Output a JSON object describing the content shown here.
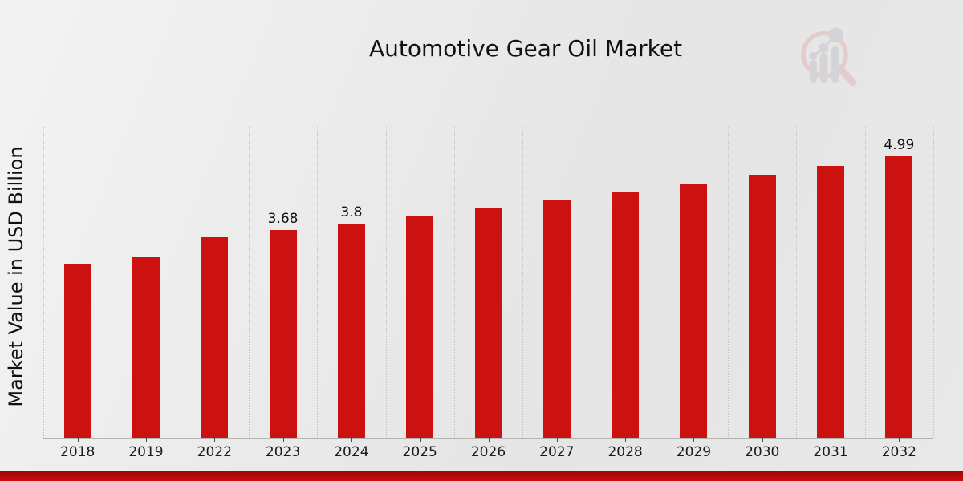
{
  "title": "Automotive Gear Oil Market",
  "ylabel": "Market Value in USD Billion",
  "footer_accent_color": "#c80d0d",
  "watermark_icon": "magnifier-bar-chart-logo",
  "chart_data": {
    "type": "bar",
    "title": "Automotive Gear Oil Market",
    "xlabel": "",
    "ylabel": "Market Value in USD Billion",
    "categories": [
      "2018",
      "2019",
      "2022",
      "2023",
      "2024",
      "2025",
      "2026",
      "2027",
      "2028",
      "2029",
      "2030",
      "2031",
      "2032"
    ],
    "values": [
      3.08,
      3.21,
      3.55,
      3.68,
      3.8,
      3.94,
      4.08,
      4.22,
      4.36,
      4.51,
      4.66,
      4.82,
      4.99
    ],
    "data_labels": {
      "2023": "3.68",
      "2024": "3.8",
      "2032": "4.99"
    },
    "bar_color": "#cc1111",
    "ylim": [
      0,
      5.5
    ],
    "grid": "vertical-dotted",
    "gridline_color": "#c5c5c5",
    "legend": "none",
    "background_color": "#e9e9e9"
  }
}
